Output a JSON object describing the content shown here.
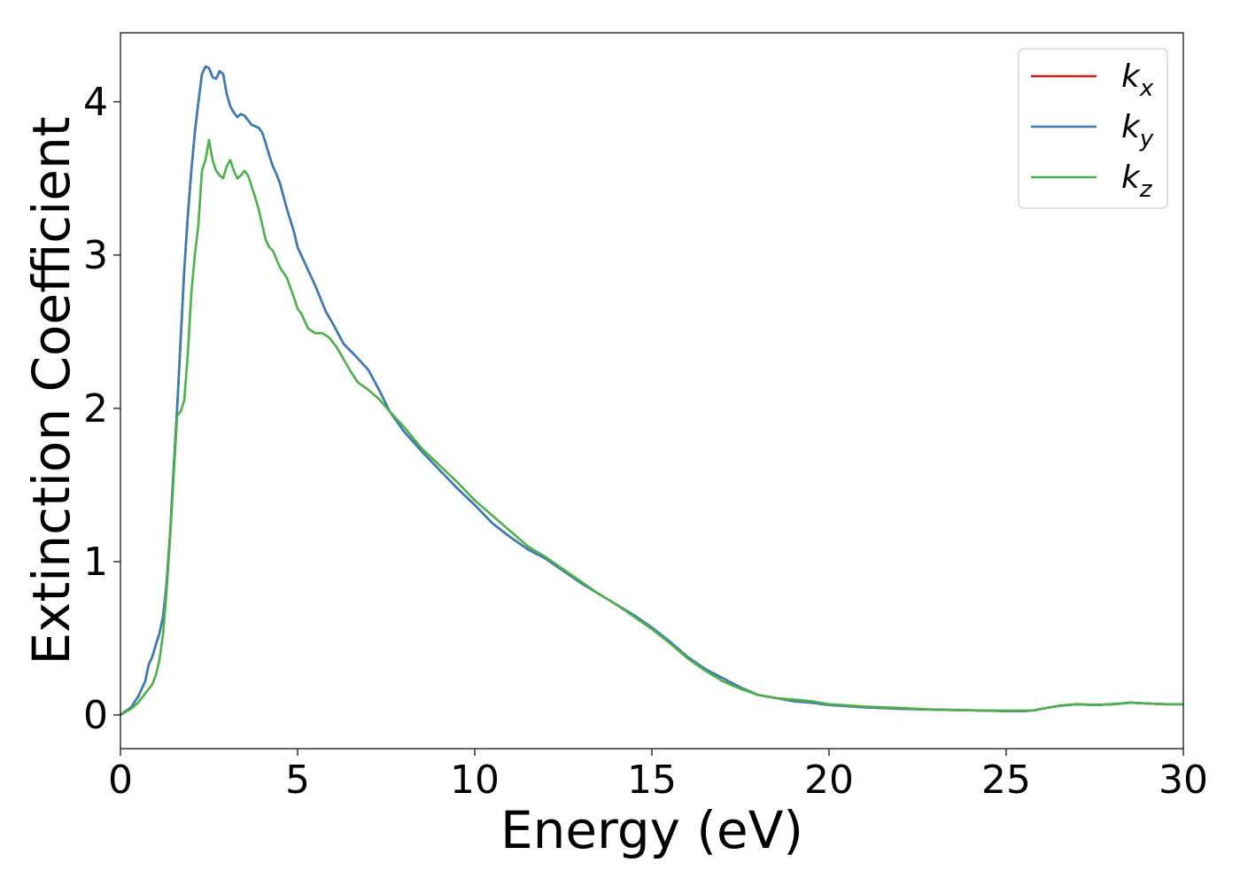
{
  "chart_data": {
    "type": "line",
    "title": "",
    "xlabel": "Energy (eV)",
    "ylabel": "Extinction Coefficient",
    "xlim": [
      0,
      30
    ],
    "ylim": [
      -0.22,
      4.45
    ],
    "xticks": [
      0,
      5,
      10,
      15,
      20,
      25,
      30
    ],
    "yticks": [
      0,
      1,
      2,
      3,
      4
    ],
    "grid": false,
    "legend_position": "top-right",
    "series": [
      {
        "name": "k_x",
        "legend": {
          "base": "k",
          "sub": "x"
        },
        "color": "#e41a1c",
        "x": [
          0,
          0.3,
          0.5,
          0.7,
          0.8,
          0.9,
          1.0,
          1.1,
          1.2,
          1.3,
          1.4,
          1.5,
          1.6,
          1.7,
          1.8,
          1.9,
          2.0,
          2.1,
          2.2,
          2.3,
          2.4,
          2.5,
          2.6,
          2.7,
          2.8,
          2.9,
          3.0,
          3.1,
          3.2,
          3.3,
          3.4,
          3.5,
          3.6,
          3.7,
          3.8,
          3.9,
          4.0,
          4.1,
          4.2,
          4.3,
          4.4,
          4.5,
          4.7,
          4.9,
          5.0,
          5.2,
          5.5,
          5.8,
          6.0,
          6.3,
          6.6,
          7.0,
          7.3,
          7.6,
          8.0,
          8.5,
          9.0,
          9.5,
          10.0,
          10.5,
          11.0,
          11.5,
          12.0,
          12.5,
          13.0,
          13.5,
          14.0,
          14.5,
          15.0,
          15.5,
          16.0,
          16.5,
          17.0,
          17.5,
          18.0,
          18.5,
          19.0,
          19.5,
          20.0,
          21.0,
          22.0,
          23.0,
          24.0,
          25.0,
          25.5,
          25.8,
          26.0,
          26.5,
          27.0,
          27.5,
          28.0,
          28.5,
          29.0,
          29.5,
          30.0
        ],
        "y": [
          0.0,
          0.05,
          0.12,
          0.22,
          0.33,
          0.38,
          0.46,
          0.53,
          0.64,
          0.85,
          1.18,
          1.6,
          2.0,
          2.45,
          2.9,
          3.25,
          3.55,
          3.8,
          4.0,
          4.18,
          4.23,
          4.22,
          4.16,
          4.15,
          4.2,
          4.18,
          4.05,
          3.97,
          3.93,
          3.9,
          3.92,
          3.91,
          3.88,
          3.85,
          3.84,
          3.83,
          3.8,
          3.73,
          3.65,
          3.58,
          3.53,
          3.47,
          3.3,
          3.15,
          3.05,
          2.95,
          2.8,
          2.63,
          2.55,
          2.42,
          2.35,
          2.25,
          2.12,
          1.98,
          1.85,
          1.72,
          1.6,
          1.48,
          1.37,
          1.25,
          1.16,
          1.08,
          1.02,
          0.94,
          0.86,
          0.79,
          0.72,
          0.65,
          0.57,
          0.48,
          0.38,
          0.3,
          0.24,
          0.18,
          0.13,
          0.11,
          0.09,
          0.08,
          0.065,
          0.05,
          0.04,
          0.035,
          0.03,
          0.025,
          0.025,
          0.03,
          0.04,
          0.06,
          0.07,
          0.065,
          0.07,
          0.08,
          0.075,
          0.07,
          0.07
        ]
      },
      {
        "name": "k_y",
        "legend": {
          "base": "k",
          "sub": "y"
        },
        "color": "#377eb8",
        "x": [
          0,
          0.3,
          0.5,
          0.7,
          0.8,
          0.9,
          1.0,
          1.1,
          1.2,
          1.3,
          1.4,
          1.5,
          1.6,
          1.7,
          1.8,
          1.9,
          2.0,
          2.1,
          2.2,
          2.3,
          2.4,
          2.5,
          2.6,
          2.7,
          2.8,
          2.9,
          3.0,
          3.1,
          3.2,
          3.3,
          3.4,
          3.5,
          3.6,
          3.7,
          3.8,
          3.9,
          4.0,
          4.1,
          4.2,
          4.3,
          4.4,
          4.5,
          4.7,
          4.9,
          5.0,
          5.2,
          5.5,
          5.8,
          6.0,
          6.3,
          6.6,
          7.0,
          7.3,
          7.6,
          8.0,
          8.5,
          9.0,
          9.5,
          10.0,
          10.5,
          11.0,
          11.5,
          12.0,
          12.5,
          13.0,
          13.5,
          14.0,
          14.5,
          15.0,
          15.5,
          16.0,
          16.5,
          17.0,
          17.5,
          18.0,
          18.5,
          19.0,
          19.5,
          20.0,
          21.0,
          22.0,
          23.0,
          24.0,
          25.0,
          25.5,
          25.8,
          26.0,
          26.5,
          27.0,
          27.5,
          28.0,
          28.5,
          29.0,
          29.5,
          30.0
        ],
        "y": [
          0.0,
          0.05,
          0.12,
          0.22,
          0.33,
          0.38,
          0.46,
          0.53,
          0.64,
          0.85,
          1.18,
          1.6,
          2.0,
          2.45,
          2.9,
          3.25,
          3.55,
          3.8,
          4.0,
          4.18,
          4.23,
          4.22,
          4.16,
          4.15,
          4.2,
          4.18,
          4.05,
          3.97,
          3.93,
          3.9,
          3.92,
          3.91,
          3.88,
          3.85,
          3.84,
          3.83,
          3.8,
          3.73,
          3.65,
          3.58,
          3.53,
          3.47,
          3.3,
          3.15,
          3.05,
          2.95,
          2.8,
          2.63,
          2.55,
          2.42,
          2.35,
          2.25,
          2.12,
          1.98,
          1.85,
          1.72,
          1.6,
          1.48,
          1.37,
          1.25,
          1.16,
          1.08,
          1.02,
          0.94,
          0.86,
          0.79,
          0.72,
          0.65,
          0.57,
          0.48,
          0.38,
          0.3,
          0.24,
          0.18,
          0.13,
          0.11,
          0.09,
          0.08,
          0.065,
          0.05,
          0.04,
          0.035,
          0.03,
          0.025,
          0.025,
          0.03,
          0.04,
          0.06,
          0.07,
          0.065,
          0.07,
          0.08,
          0.075,
          0.07,
          0.07
        ]
      },
      {
        "name": "k_z",
        "legend": {
          "base": "k",
          "sub": "z"
        },
        "color": "#4daf4a",
        "x": [
          0,
          0.3,
          0.5,
          0.7,
          0.9,
          1.0,
          1.1,
          1.2,
          1.3,
          1.4,
          1.5,
          1.6,
          1.7,
          1.8,
          1.9,
          2.0,
          2.1,
          2.2,
          2.3,
          2.4,
          2.5,
          2.6,
          2.7,
          2.8,
          2.9,
          3.0,
          3.1,
          3.2,
          3.3,
          3.4,
          3.5,
          3.6,
          3.7,
          3.8,
          3.9,
          4.0,
          4.1,
          4.2,
          4.3,
          4.5,
          4.7,
          4.9,
          5.0,
          5.1,
          5.2,
          5.3,
          5.5,
          5.7,
          5.9,
          6.1,
          6.3,
          6.5,
          6.7,
          7.0,
          7.3,
          7.6,
          8.0,
          8.5,
          9.0,
          9.5,
          10.0,
          10.5,
          11.0,
          11.5,
          12.0,
          12.5,
          13.0,
          13.5,
          14.0,
          14.5,
          15.0,
          15.5,
          16.0,
          16.5,
          17.0,
          17.5,
          18.0,
          18.5,
          19.0,
          19.5,
          20.0,
          21.0,
          22.0,
          23.0,
          24.0,
          25.0,
          25.5,
          25.8,
          26.0,
          26.5,
          27.0,
          27.5,
          28.0,
          28.5,
          29.0,
          29.5,
          30.0
        ],
        "y": [
          0.0,
          0.04,
          0.08,
          0.14,
          0.2,
          0.26,
          0.36,
          0.52,
          0.8,
          1.15,
          1.55,
          1.95,
          1.98,
          2.05,
          2.35,
          2.75,
          3.0,
          3.2,
          3.55,
          3.62,
          3.75,
          3.62,
          3.55,
          3.52,
          3.5,
          3.58,
          3.62,
          3.55,
          3.5,
          3.52,
          3.55,
          3.52,
          3.45,
          3.38,
          3.3,
          3.2,
          3.1,
          3.05,
          3.03,
          2.92,
          2.85,
          2.72,
          2.65,
          2.62,
          2.57,
          2.52,
          2.49,
          2.49,
          2.46,
          2.4,
          2.32,
          2.24,
          2.17,
          2.12,
          2.06,
          1.98,
          1.88,
          1.74,
          1.63,
          1.52,
          1.4,
          1.3,
          1.2,
          1.1,
          1.03,
          0.95,
          0.87,
          0.79,
          0.72,
          0.64,
          0.56,
          0.47,
          0.37,
          0.29,
          0.22,
          0.17,
          0.13,
          0.11,
          0.1,
          0.09,
          0.07,
          0.055,
          0.045,
          0.035,
          0.03,
          0.028,
          0.028,
          0.03,
          0.04,
          0.06,
          0.07,
          0.065,
          0.07,
          0.08,
          0.075,
          0.07,
          0.07
        ]
      }
    ]
  }
}
